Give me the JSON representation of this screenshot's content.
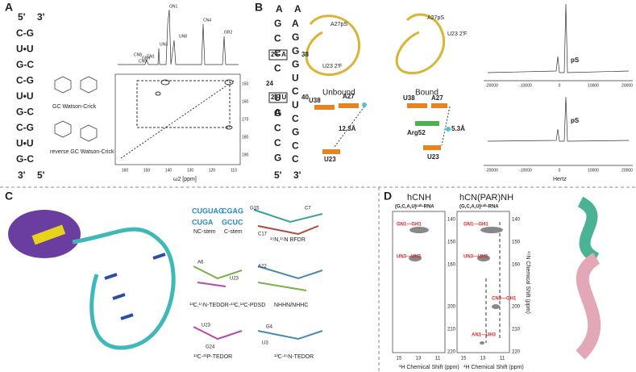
{
  "panel_a": {
    "label": "A",
    "helix_top": [
      "5'",
      "3'"
    ],
    "pairs": [
      "C-G",
      "U•U",
      "G-C",
      "C-G",
      "U•U",
      "G-C",
      "C-G",
      "U•U",
      "G-C"
    ],
    "helix_bottom": [
      "3'",
      "5'"
    ],
    "peaks": [
      "GN1",
      "UN3",
      "CN1",
      "GN9",
      "CN9",
      "CN8",
      "UN8",
      "CN4",
      "GR2"
    ],
    "insets": [
      "GC Watson-Crick",
      "reverse GC Watson-Crick"
    ],
    "x_axis": "ω2 [ppm]",
    "x_ticks": [
      "160",
      "150",
      "140",
      "130",
      "120",
      "110"
    ],
    "y_ticks": [
      "150",
      "160",
      "170",
      "180",
      "190"
    ]
  },
  "panel_b": {
    "label": "B",
    "sequence_left": [
      "G",
      "C",
      "C",
      "C",
      "U",
      "A",
      "G",
      "C",
      "C",
      "G"
    ],
    "sequence_right": [
      "A",
      "G",
      "G",
      "G",
      "U",
      "C",
      "U",
      "C",
      "G",
      "C",
      "C"
    ],
    "top_a": [
      "A",
      "A"
    ],
    "boxed": [
      "2'F A",
      "2'F U"
    ],
    "numbers": [
      "38",
      "24",
      "40"
    ],
    "ends": [
      "5'",
      "3'"
    ],
    "states": [
      "Unbound",
      "Bound"
    ],
    "residue_labels": [
      "A27pS",
      "U23 2'F",
      "A27pS",
      "U23 2'F",
      "U38",
      "A27",
      "U23",
      "U38",
      "A27",
      "Arg52",
      "U23"
    ],
    "distances": [
      "12.3Å",
      "5.3Å"
    ],
    "spectrum_labels": [
      "pS",
      "pS"
    ],
    "x_ticks": [
      "-20000",
      "-10000",
      "0",
      "10000",
      "20000"
    ],
    "x_axis": "Hertz"
  },
  "panel_c": {
    "label": "C",
    "stems": [
      "NC-stem",
      "C-stem"
    ],
    "sequences": [
      "CUGUAG",
      "CUGA",
      "CGAG",
      "GCUC"
    ],
    "experiments": [
      "¹⁵N,¹⁵N RFDR",
      "¹³C,¹⁵N-TEDOR-¹³C,¹³C-PDSD",
      "NHHN/NHHC",
      "¹³C-³¹P-TEDOR",
      "¹³C-¹⁵N-TEDOR"
    ],
    "residues": [
      "G15",
      "C7",
      "C17",
      "A6",
      "U23",
      "A22",
      "U23",
      "G24",
      "G4",
      "U3"
    ]
  },
  "panel_d": {
    "label": "D",
    "titles": [
      "hCNH",
      "hCN(PAR)NH"
    ],
    "sample": "(G,C,A,U)ᴸᵃᵇ-RNA",
    "peaks_left": [
      "GN1—GH1",
      "UN3—UH3"
    ],
    "peaks_right": [
      "GN1—GH1",
      "UN3—UH3",
      "CN3—GH1",
      "AN1—UH3"
    ],
    "y_ticks": [
      "140",
      "150",
      "160",
      "200",
      "210",
      "220"
    ],
    "x_ticks": [
      "15",
      "13",
      "11"
    ],
    "x_axis": "¹H Chemical Shift (ppm)",
    "y_axis": "¹⁵N Chemical Shift (ppm)"
  }
}
